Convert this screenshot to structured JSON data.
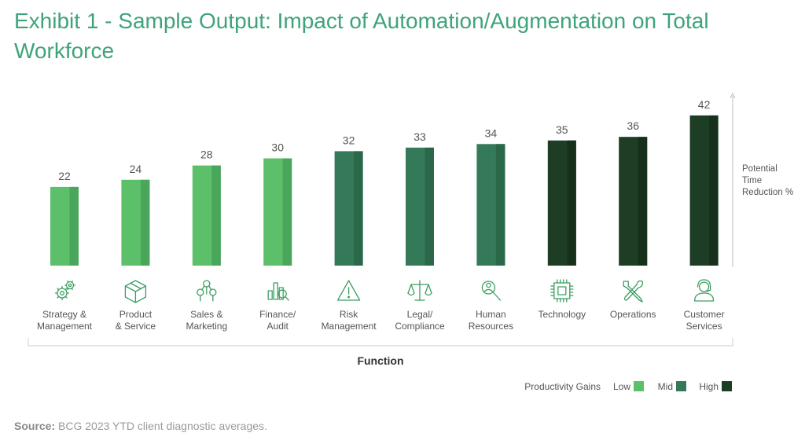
{
  "title": "Exhibit 1 - Sample Output: Impact of Automation/Augmentation on Total Workforce",
  "source_label": "Source:",
  "source_text": "BCG 2023 YTD client diagnostic averages.",
  "chart_data": {
    "type": "bar",
    "categories": [
      [
        "Strategy &",
        "Management"
      ],
      [
        "Product",
        "& Service"
      ],
      [
        "Sales &",
        "Marketing"
      ],
      [
        "Finance/",
        "Audit"
      ],
      [
        "Risk",
        "Management"
      ],
      [
        "Legal/",
        "Compliance"
      ],
      [
        "Human",
        "Resources"
      ],
      [
        "Technology"
      ],
      [
        "Operations"
      ],
      [
        "Customer",
        "Services"
      ]
    ],
    "values": [
      22,
      24,
      28,
      30,
      32,
      33,
      34,
      35,
      36,
      42
    ],
    "levels": [
      "Low",
      "Low",
      "Low",
      "Low",
      "Mid",
      "Mid",
      "Mid",
      "High",
      "High",
      "High"
    ],
    "icons": [
      "gears-icon",
      "box-icon",
      "people-network-icon",
      "bar-chart-magnifier-icon",
      "warning-triangle-icon",
      "scales-icon",
      "person-search-icon",
      "chip-icon",
      "wrench-screwdriver-icon",
      "headset-agent-icon"
    ],
    "ylabel": [
      "Potential",
      "Time",
      "Reduction %"
    ],
    "xlabel": "Function",
    "legend": {
      "title": "Productivity Gains",
      "items": [
        {
          "label": "Low",
          "color": "#5cbf6a"
        },
        {
          "label": "Mid",
          "color": "#347a58"
        },
        {
          "label": "High",
          "color": "#1e3d25"
        }
      ],
      "placement": "bottom-right"
    },
    "colors": {
      "Low": "#5cbf6a",
      "Mid": "#347a58",
      "High": "#1e3d25"
    },
    "shade_colors": {
      "Low": "#4aa65a",
      "Mid": "#2a6849",
      "High": "#16301c"
    },
    "ylim": [
      0,
      44
    ],
    "grid": false
  }
}
